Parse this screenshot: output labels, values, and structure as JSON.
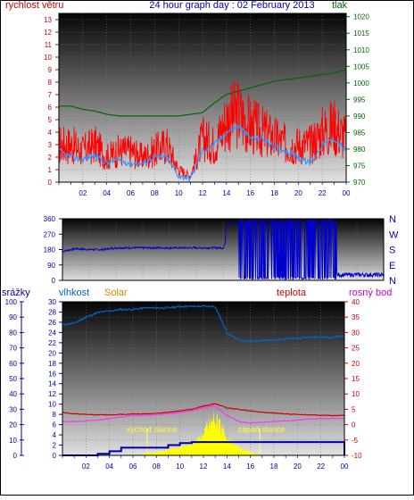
{
  "title": "24 hour graph day : 02 February 2013",
  "colors": {
    "wind": "#ff0000",
    "gust": "#3399ff",
    "pressure": "#006600",
    "direction": "#0000cc",
    "rain": "#0000aa",
    "humidity": "#0066cc",
    "solar": "#ffff00",
    "temperature": "#cc0000",
    "dewpoint": "#ff33ff",
    "axis_blue": "#0000aa",
    "label_red": "#cc0000",
    "label_green": "#006600",
    "label_orange": "#cc8800",
    "label_magenta": "#cc00cc"
  },
  "chart_data": [
    {
      "type": "line",
      "name": "wind-pressure",
      "left_label": "rychlost větru",
      "right_label": "tlak",
      "left_ticks": [
        "0",
        "1",
        "2",
        "3",
        "4",
        "5",
        "6",
        "7",
        "8",
        "9",
        "10",
        "11",
        "12",
        "13"
      ],
      "right_ticks": [
        "970",
        "975",
        "980",
        "985",
        "990",
        "995",
        "1000",
        "1005",
        "1010",
        "1015",
        "1020"
      ],
      "x_ticks": [
        "02",
        "04",
        "06",
        "08",
        "10",
        "12",
        "14",
        "16",
        "18",
        "20",
        "22",
        "00"
      ],
      "left_range": [
        0,
        13.5
      ],
      "right_range": [
        970,
        1021
      ],
      "series": [
        {
          "axis": "left",
          "color_key": "wind",
          "style": "noisy",
          "x": [
            0,
            1,
            2,
            3,
            4,
            5,
            6,
            7,
            8,
            9,
            10,
            11,
            12,
            13,
            14,
            15,
            16,
            17,
            18,
            19,
            20,
            21,
            22,
            23,
            24
          ],
          "y": [
            3,
            3,
            2.5,
            3,
            2,
            2.5,
            2.5,
            2,
            2.5,
            3,
            1,
            0.5,
            3.5,
            3,
            5,
            5.5,
            4.5,
            4,
            3.5,
            3,
            3,
            3,
            4,
            4.5,
            3.5
          ]
        },
        {
          "axis": "left",
          "color_key": "gust",
          "style": "smooth",
          "x": [
            0,
            1,
            2,
            3,
            4,
            5,
            6,
            7,
            8,
            9,
            10,
            11,
            12,
            13,
            14,
            15,
            16,
            17,
            18,
            19,
            20,
            21,
            22,
            23,
            24
          ],
          "y": [
            2.5,
            2,
            1.8,
            2.2,
            1.5,
            1.8,
            1.5,
            1.5,
            2,
            2,
            0.5,
            0.3,
            2.5,
            3,
            4,
            4.5,
            3.5,
            3.5,
            2.8,
            2.5,
            2,
            1.5,
            3,
            3.5,
            2.5
          ]
        },
        {
          "axis": "right",
          "color_key": "pressure",
          "style": "smooth",
          "x": [
            0,
            1,
            2,
            3,
            4,
            5,
            6,
            7,
            8,
            9,
            10,
            11,
            12,
            13,
            14,
            15,
            16,
            17,
            18,
            19,
            20,
            21,
            22,
            23,
            24
          ],
          "y": [
            993,
            993,
            992,
            991.5,
            990.5,
            990,
            990,
            990,
            990,
            990,
            990,
            990.5,
            991,
            994,
            996.5,
            997.5,
            998.5,
            999.5,
            1000.5,
            1001,
            1001.5,
            1002,
            1002.5,
            1003,
            1004
          ]
        }
      ]
    },
    {
      "type": "line",
      "name": "wind-direction",
      "left_ticks": [
        "0",
        "90",
        "180",
        "270",
        "360"
      ],
      "right_ticks": [
        "N",
        "W",
        "S",
        "E",
        "N"
      ],
      "left_range": [
        0,
        360
      ],
      "series": [
        {
          "color_key": "direction",
          "style": "noisy",
          "x": [
            0,
            1,
            2,
            3,
            4,
            5,
            6,
            7,
            8,
            9,
            10,
            11,
            12,
            13,
            14,
            15,
            16,
            17,
            18,
            19,
            20,
            21,
            22,
            23,
            24
          ],
          "y": [
            170,
            185,
            180,
            180,
            190,
            190,
            190,
            190,
            190,
            190,
            190,
            190,
            190,
            340,
            10,
            350,
            20,
            340,
            15,
            340,
            20,
            35,
            40,
            45,
            30
          ]
        }
      ]
    },
    {
      "type": "line",
      "name": "rain-humidity-solar-temp",
      "label_rain": "srážky",
      "label_humidity": "vlhkost",
      "label_solar": "Solar",
      "label_temp": "teplota",
      "label_dew": "rosný bod",
      "rain_ticks": [
        "0",
        "10",
        "20",
        "30",
        "40",
        "50",
        "60",
        "70",
        "80",
        "90",
        "100"
      ],
      "humidity_ticks": [
        "0",
        "2",
        "4",
        "6",
        "8",
        "10",
        "12",
        "14",
        "16",
        "18",
        "20",
        "22",
        "24",
        "26",
        "28",
        "30"
      ],
      "temp_ticks": [
        "-10",
        "-5",
        "0",
        "5",
        "10",
        "15",
        "20",
        "25",
        "30",
        "35",
        "40"
      ],
      "x_ticks": [
        "02",
        "04",
        "06",
        "08",
        "10",
        "12",
        "14",
        "16",
        "18",
        "20",
        "22",
        "00"
      ],
      "annotation_sunrise": "východ slunce",
      "annotation_sunset": "západ slunce",
      "humidity_range": [
        0,
        100
      ],
      "temp_range": [
        -10,
        40
      ],
      "rain_range": [
        0,
        30
      ],
      "series": [
        {
          "axis": "humidity",
          "color_key": "humidity",
          "style": "smooth",
          "x": [
            0,
            1,
            2,
            3,
            4,
            5,
            6,
            7,
            8,
            9,
            10,
            11,
            12,
            13,
            14,
            15,
            16,
            17,
            18,
            19,
            20,
            21,
            22,
            23,
            24
          ],
          "y": [
            85,
            86,
            90,
            93,
            94,
            95,
            95,
            96,
            96,
            96,
            97,
            97,
            97,
            97,
            80,
            75,
            74,
            75,
            75,
            76,
            76,
            77,
            77,
            77,
            78
          ]
        },
        {
          "axis": "temp",
          "color_key": "temperature",
          "style": "smooth",
          "x": [
            0,
            1,
            2,
            3,
            4,
            5,
            6,
            7,
            8,
            9,
            10,
            11,
            12,
            13,
            14,
            15,
            16,
            17,
            18,
            19,
            20,
            21,
            22,
            23,
            24
          ],
          "y": [
            4,
            3.5,
            3.3,
            3.2,
            3.2,
            3.3,
            3.5,
            3.5,
            3.7,
            4,
            4.5,
            5,
            6,
            6.8,
            5.5,
            5,
            4.5,
            4,
            3.8,
            3.5,
            3.3,
            3.2,
            3,
            3,
            3
          ]
        },
        {
          "axis": "temp",
          "color_key": "dewpoint",
          "style": "smooth",
          "x": [
            0,
            1,
            2,
            3,
            4,
            5,
            6,
            7,
            8,
            9,
            10,
            11,
            12,
            13,
            14,
            15,
            16,
            17,
            18,
            19,
            20,
            21,
            22,
            23,
            24
          ],
          "y": [
            1,
            1,
            1.2,
            1.5,
            2,
            2.5,
            3,
            3,
            3.3,
            3.5,
            4,
            4.5,
            5.5,
            6,
            3,
            1,
            0.5,
            0.8,
            1,
            1.2,
            1.5,
            1.8,
            2,
            2,
            2
          ]
        },
        {
          "axis": "rain",
          "color_key": "rain",
          "style": "step",
          "x": [
            0,
            1,
            2,
            3,
            4,
            5,
            6,
            7,
            8,
            9,
            10,
            11,
            12,
            13,
            14,
            15,
            16,
            17,
            18,
            19,
            20,
            21,
            22,
            23,
            23.9,
            24
          ],
          "y": [
            0,
            0,
            0,
            0.3,
            0.8,
            1.5,
            1.5,
            1.5,
            1.5,
            2,
            2.4,
            2.6,
            2.6,
            2.6,
            2.6,
            2.6,
            2.6,
            2.6,
            2.6,
            2.6,
            2.6,
            2.6,
            2.6,
            2.6,
            2.6,
            0
          ]
        },
        {
          "axis": "solar",
          "color_key": "solar",
          "style": "area",
          "x": [
            6,
            7,
            8,
            9,
            10,
            11,
            11.5,
            12,
            12.5,
            13,
            13.5,
            14,
            14.5,
            15,
            16,
            17
          ],
          "y": [
            0,
            0.3,
            0.8,
            1.5,
            2,
            3,
            4,
            6,
            8,
            10,
            7,
            5,
            3,
            2,
            0.8,
            0
          ]
        }
      ]
    }
  ]
}
